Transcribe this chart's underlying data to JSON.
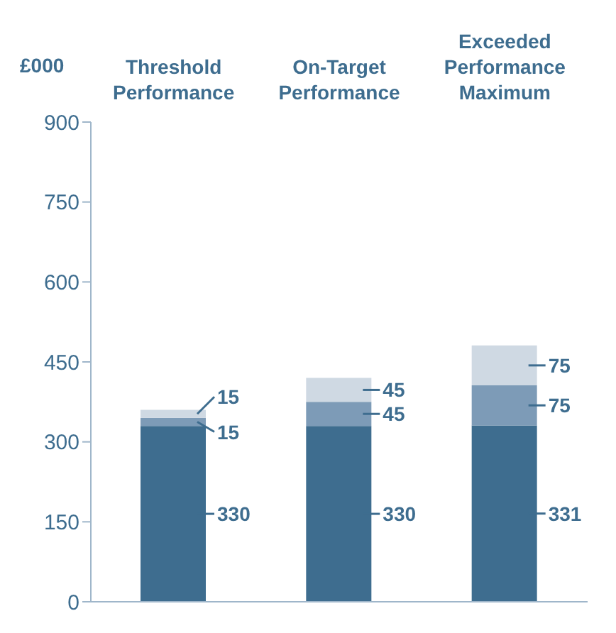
{
  "chart_data": {
    "type": "bar",
    "ylabel": "£000",
    "categories": [
      "Threshold Performance",
      "On-Target Performance",
      "Exceeded Performance Maximum"
    ],
    "stacked": true,
    "data_labels": true,
    "ylim": [
      0,
      900
    ],
    "yticks": [
      0,
      150,
      300,
      450,
      600,
      750,
      900
    ],
    "series": [
      {
        "color": "#3e6d8f",
        "values": [
          330,
          330,
          331
        ]
      },
      {
        "color": "#7d9bb7",
        "values": [
          15,
          45,
          75
        ]
      },
      {
        "color": "#cfd9e3",
        "values": [
          15,
          45,
          75
        ]
      }
    ]
  }
}
